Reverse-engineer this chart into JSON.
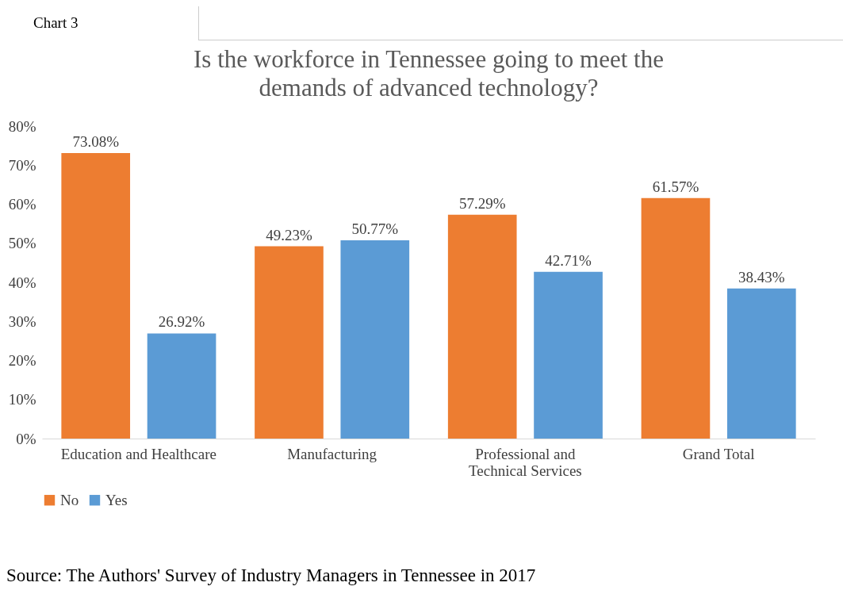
{
  "chart_data": {
    "type": "bar",
    "title": "Is the workforce in Tennessee going to meet the demands of advanced technology?",
    "categories": [
      "Education and Healthcare",
      "Manufacturing",
      "Professional and Technical Services",
      "Grand Total"
    ],
    "series": [
      {
        "name": "No",
        "color": "#ed7d31",
        "values": [
          73.08,
          49.23,
          57.29,
          61.57
        ],
        "value_labels": [
          "73.08%",
          "49.23%",
          "57.29%",
          "61.57%"
        ]
      },
      {
        "name": "Yes",
        "color": "#5b9bd5",
        "values": [
          26.92,
          50.77,
          42.71,
          38.43
        ],
        "value_labels": [
          "26.92%",
          "50.77%",
          "42.71%",
          "38.43%"
        ]
      }
    ],
    "ylim": [
      0,
      80
    ],
    "yticks": [
      {
        "value": 0,
        "label": "0%"
      },
      {
        "value": 10,
        "label": "10%"
      },
      {
        "value": 20,
        "label": "20%"
      },
      {
        "value": 30,
        "label": "30%"
      },
      {
        "value": 40,
        "label": "40%"
      },
      {
        "value": 50,
        "label": "50%"
      },
      {
        "value": 60,
        "label": "60%"
      },
      {
        "value": 70,
        "label": "70%"
      },
      {
        "value": 80,
        "label": "80%"
      }
    ],
    "grid": false,
    "legend": "bottom",
    "annotations": [
      "Chart 3",
      "Source: The Authors' Survey of Industry Managers in Tennessee in 2017"
    ]
  }
}
